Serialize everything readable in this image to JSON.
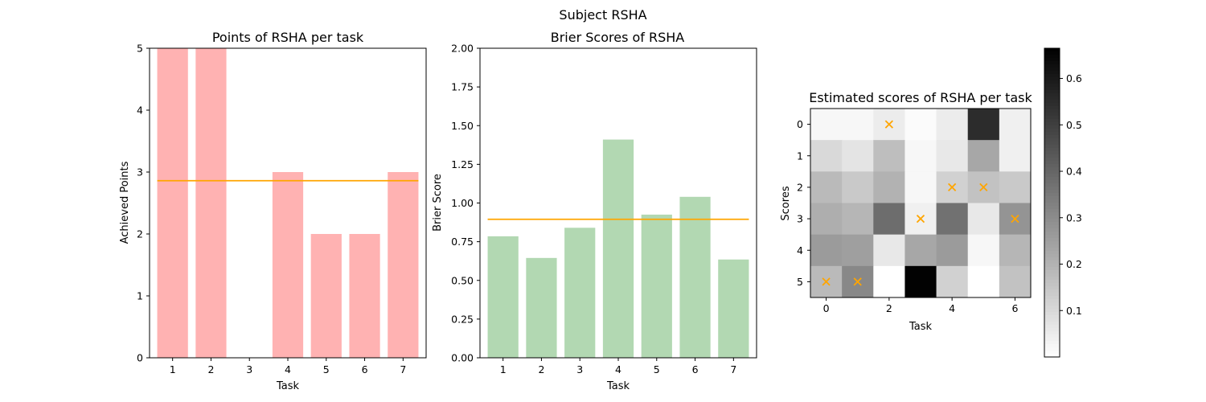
{
  "suptitle": "Subject RSHA",
  "chart_data": [
    {
      "type": "bar",
      "title": "Points of RSHA per task",
      "xlabel": "Task",
      "ylabel": "Achieved Points",
      "categories": [
        "1",
        "2",
        "3",
        "4",
        "5",
        "6",
        "7"
      ],
      "values": [
        5,
        5,
        0,
        3,
        2,
        2,
        3
      ],
      "mean_line": 2.86,
      "ylim": [
        0,
        5
      ],
      "yticks": [
        "0",
        "1",
        "2",
        "3",
        "4",
        "5"
      ],
      "bar_color": "#ffb2b2",
      "line_color": "#ffa500",
      "grid": false
    },
    {
      "type": "bar",
      "title": "Brier Scores of RSHA",
      "xlabel": "Task",
      "ylabel": "Brier Score",
      "categories": [
        "1",
        "2",
        "3",
        "4",
        "5",
        "6",
        "7"
      ],
      "values": [
        0.785,
        0.645,
        0.84,
        1.41,
        0.925,
        1.04,
        0.635
      ],
      "mean_line": 0.895,
      "ylim": [
        0,
        2
      ],
      "yticks": [
        "0.00",
        "0.25",
        "0.50",
        "0.75",
        "1.00",
        "1.25",
        "1.50",
        "1.75",
        "2.00"
      ],
      "bar_color": "#b2d8b2",
      "line_color": "#ffa500",
      "grid": false
    },
    {
      "type": "heatmap",
      "title": "Estimated scores of RSHA per task",
      "xlabel": "Task",
      "ylabel": "Scores",
      "xticks": [
        "0",
        "2",
        "4",
        "6"
      ],
      "yticks": [
        "0",
        "1",
        "2",
        "3",
        "4",
        "5"
      ],
      "matrix": [
        [
          0.02,
          0.02,
          0.05,
          0.01,
          0.05,
          0.55,
          0.04
        ],
        [
          0.1,
          0.07,
          0.17,
          0.02,
          0.06,
          0.23,
          0.04
        ],
        [
          0.18,
          0.14,
          0.2,
          0.02,
          0.12,
          0.16,
          0.14
        ],
        [
          0.21,
          0.19,
          0.38,
          0.04,
          0.37,
          0.06,
          0.28
        ],
        [
          0.26,
          0.25,
          0.06,
          0.23,
          0.26,
          0.02,
          0.19
        ],
        [
          0.18,
          0.31,
          0.0,
          0.66,
          0.12,
          0.0,
          0.16
        ]
      ],
      "markers": [
        [
          0,
          5
        ],
        [
          1,
          5
        ],
        [
          2,
          0
        ],
        [
          3,
          3
        ],
        [
          4,
          2
        ],
        [
          5,
          2
        ],
        [
          6,
          3
        ]
      ],
      "marker_color": "#ffa500",
      "colorbar": {
        "min": 0,
        "max": 0.665,
        "ticks": [
          "0.1",
          "0.2",
          "0.3",
          "0.4",
          "0.5",
          "0.6"
        ]
      }
    }
  ]
}
